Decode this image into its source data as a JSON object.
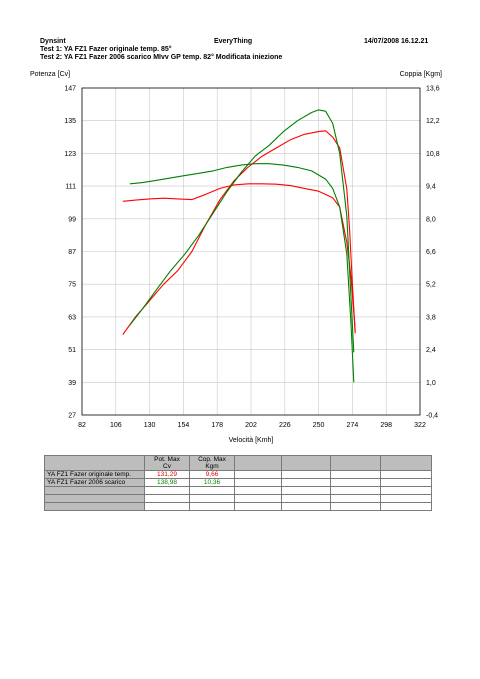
{
  "header": {
    "app_name": "Dynsint",
    "center_title": "EveryThing",
    "datetime": "14/07/2008  16.12.21",
    "test1": "Test 1: YA FZ1 Fazer originale temp. 85°",
    "test2": "Test 2: YA FZ1 Fazer 2006 scarico MIvv GP temp. 82° Modificata iniezione"
  },
  "chart_data": {
    "type": "line",
    "xlabel": "Velocità [Kmh]",
    "ylabel": "Potenza [Cv]",
    "y2label": "Coppia [Kgm]",
    "xlim": [
      82,
      322
    ],
    "ylim": [
      27,
      147
    ],
    "y2lim": [
      -0.4,
      13.6
    ],
    "x_ticks": [
      "82",
      "106",
      "130",
      "154",
      "178",
      "202",
      "226",
      "250",
      "274",
      "298",
      "322"
    ],
    "y_ticks": [
      "27",
      "39",
      "51",
      "63",
      "75",
      "87",
      "99",
      "111",
      "123",
      "135",
      "147"
    ],
    "y2_ticks": [
      "-0,4",
      "1,0",
      "2,4",
      "3,8",
      "5,2",
      "6,6",
      "8,0",
      "9,4",
      "10,8",
      "12,2",
      "13,6"
    ],
    "grid": true,
    "colors": {
      "test1": "#ff0000",
      "test2": "#008000"
    },
    "series": [
      {
        "test": 1,
        "quantity": "power",
        "axis": "left",
        "x": [
          111,
          120,
          130,
          140,
          150,
          160,
          170,
          180,
          190,
          200,
          210,
          220,
          230,
          240,
          250,
          255,
          260,
          265,
          270,
          272,
          274,
          276
        ],
        "y": [
          56.5,
          63,
          69,
          75,
          80,
          87,
          97,
          106,
          113,
          118,
          122,
          125,
          128,
          130,
          131,
          131.3,
          129,
          125,
          110,
          95,
          75,
          57
        ]
      },
      {
        "test": 1,
        "quantity": "torque",
        "axis": "right",
        "x": [
          111,
          120,
          130,
          140,
          150,
          160,
          170,
          180,
          190,
          200,
          210,
          220,
          230,
          240,
          250,
          260,
          265,
          270,
          273,
          275,
          276
        ],
        "y": [
          8.75,
          8.8,
          8.85,
          8.88,
          8.85,
          8.82,
          9.05,
          9.3,
          9.45,
          9.5,
          9.5,
          9.48,
          9.42,
          9.3,
          9.18,
          8.9,
          8.5,
          7.0,
          5.5,
          4.0,
          3.2
        ]
      },
      {
        "test": 2,
        "quantity": "power",
        "axis": "left",
        "x": [
          116,
          125,
          135,
          145,
          155,
          165,
          175,
          185,
          195,
          205,
          215,
          225,
          235,
          245,
          250,
          255,
          260,
          265,
          270,
          272,
          274,
          275
        ],
        "y": [
          60,
          66,
          73,
          80,
          86,
          93,
          101,
          109,
          116,
          122,
          126,
          131,
          135,
          138,
          138.98,
          138.5,
          134,
          123,
          100,
          80,
          60,
          50
        ]
      },
      {
        "test": 2,
        "quantity": "torque",
        "axis": "right",
        "x": [
          116,
          125,
          135,
          145,
          155,
          165,
          175,
          185,
          195,
          205,
          215,
          225,
          235,
          245,
          255,
          260,
          265,
          270,
          273,
          275
        ],
        "y": [
          9.5,
          9.55,
          9.65,
          9.75,
          9.85,
          9.95,
          10.05,
          10.2,
          10.3,
          10.36,
          10.36,
          10.3,
          10.2,
          10.05,
          9.7,
          9.3,
          8.5,
          6.5,
          3.5,
          1.0
        ]
      }
    ]
  },
  "results_table": {
    "col1_header": "Pot. Max",
    "col1_sub": "Cv",
    "col2_header": "Cop. Max",
    "col2_sub": "Kgm",
    "rows": [
      {
        "label": "YA FZ1 Fazer originale temp.",
        "pot": "131,29",
        "cop": "9,66"
      },
      {
        "label": "YA FZ1 Fazer 2006 scarico",
        "pot": "138,98",
        "cop": "10,36"
      }
    ]
  }
}
